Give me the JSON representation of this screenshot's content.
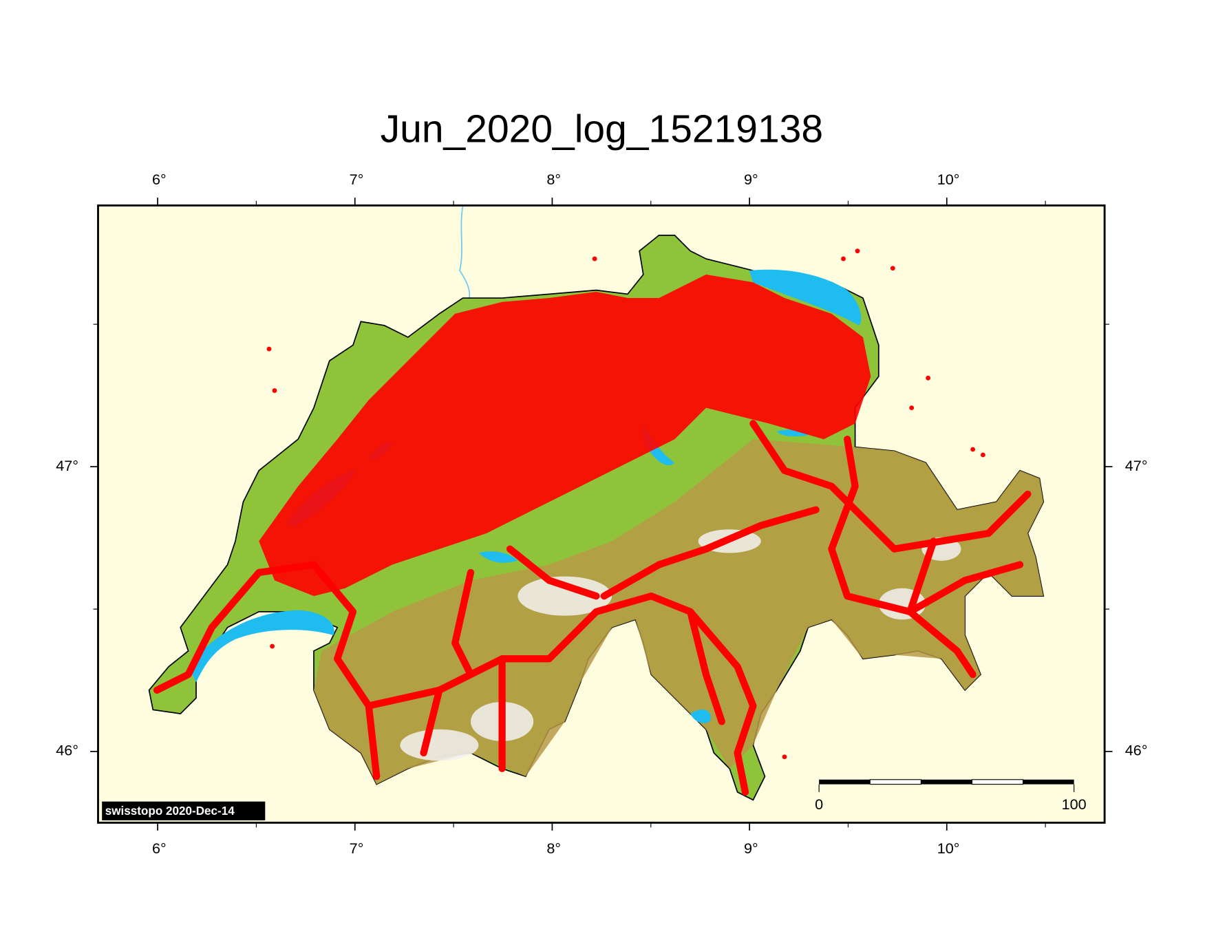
{
  "title": "Jun_2020_log_15219138",
  "map": {
    "xlim": [
      5.698,
      10.8
    ],
    "ylim": [
      45.75,
      47.917
    ],
    "xticks": [
      {
        "value": 6,
        "label": "6°"
      },
      {
        "value": 7,
        "label": "7°"
      },
      {
        "value": 8,
        "label": "8°"
      },
      {
        "value": 9,
        "label": "9°"
      },
      {
        "value": 10,
        "label": "10°"
      }
    ],
    "yticks": [
      {
        "value": 46,
        "label": "46°"
      },
      {
        "value": 47,
        "label": "47°"
      }
    ],
    "scale_bar": {
      "labels": [
        "0",
        "100"
      ]
    },
    "credit": "swisstopo 2020-Dec-14"
  }
}
